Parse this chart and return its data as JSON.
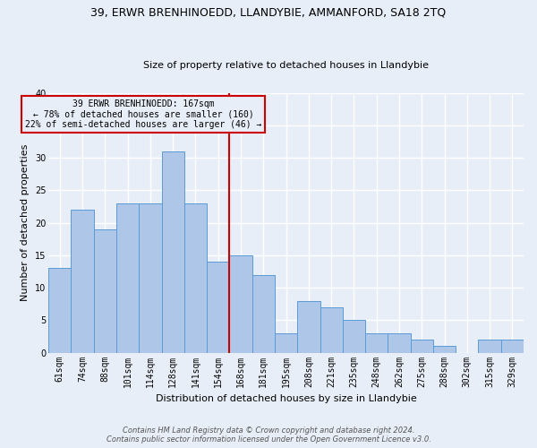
{
  "title1": "39, ERWR BRENHINOEDD, LLANDYBIE, AMMANFORD, SA18 2TQ",
  "title2": "Size of property relative to detached houses in Llandybie",
  "xlabel": "Distribution of detached houses by size in Llandybie",
  "ylabel": "Number of detached properties",
  "footer": "Contains HM Land Registry data © Crown copyright and database right 2024.\nContains public sector information licensed under the Open Government Licence v3.0.",
  "categories": [
    "61sqm",
    "74sqm",
    "88sqm",
    "101sqm",
    "114sqm",
    "128sqm",
    "141sqm",
    "154sqm",
    "168sqm",
    "181sqm",
    "195sqm",
    "208sqm",
    "221sqm",
    "235sqm",
    "248sqm",
    "262sqm",
    "275sqm",
    "288sqm",
    "302sqm",
    "315sqm",
    "329sqm"
  ],
  "values": [
    13,
    22,
    19,
    23,
    23,
    31,
    23,
    14,
    15,
    12,
    3,
    8,
    7,
    5,
    3,
    3,
    2,
    1,
    0,
    2,
    2
  ],
  "bar_color": "#aec6e8",
  "bar_edge_color": "#5b9bd5",
  "annotation_line_index": 8,
  "annotation_text_line1": "39 ERWR BRENHINOEDD: 167sqm",
  "annotation_text_line2": "← 78% of detached houses are smaller (160)",
  "annotation_text_line3": "22% of semi-detached houses are larger (46) →",
  "vline_color": "#cc0000",
  "box_edge_color": "#cc0000",
  "ylim": [
    0,
    40
  ],
  "yticks": [
    0,
    5,
    10,
    15,
    20,
    25,
    30,
    35,
    40
  ],
  "background_color": "#e8eef7",
  "grid_color": "#ffffff",
  "title1_fontsize": 9,
  "title2_fontsize": 8,
  "xlabel_fontsize": 8,
  "ylabel_fontsize": 8,
  "tick_fontsize": 7,
  "footer_fontsize": 6,
  "annotation_fontsize": 7
}
